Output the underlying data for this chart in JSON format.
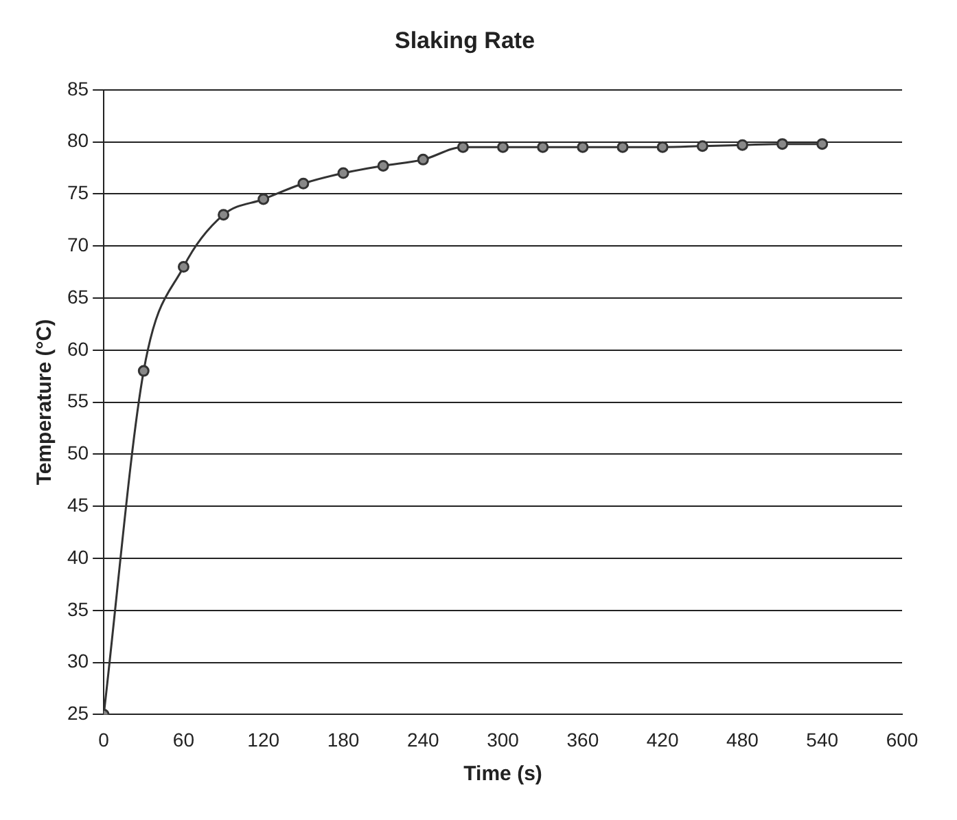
{
  "chart_data": {
    "type": "line",
    "title": "Slaking Rate",
    "xlabel": "Time (s)",
    "ylabel": "Temperature (°C)",
    "x": [
      0,
      30,
      60,
      90,
      120,
      150,
      180,
      210,
      240,
      270,
      300,
      330,
      360,
      390,
      420,
      450,
      480,
      510,
      540
    ],
    "series": [
      {
        "color": "#333333",
        "values": [
          25,
          58,
          68,
          73,
          74.5,
          76,
          77,
          77.7,
          78.3,
          79.5,
          79.5,
          79.5,
          79.5,
          79.5,
          79.5,
          79.6,
          79.7,
          79.8,
          79.8
        ]
      }
    ],
    "xlim": [
      0,
      600
    ],
    "xticks": [
      0,
      60,
      120,
      180,
      240,
      300,
      360,
      420,
      480,
      540,
      600
    ],
    "ylim": [
      25,
      85
    ],
    "yticks": [
      25,
      30,
      35,
      40,
      45,
      50,
      55,
      60,
      65,
      70,
      75,
      80,
      85
    ],
    "grid": "y",
    "legend": false,
    "marker": "circle",
    "line_style": "solid"
  }
}
